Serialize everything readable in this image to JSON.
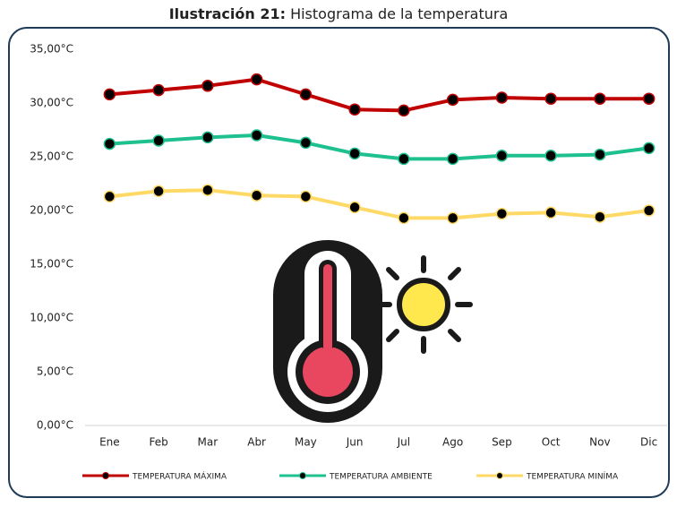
{
  "chart_data": {
    "type": "line",
    "caption_label": "Ilustración 21:",
    "title": "Histograma de la temperatura",
    "categories": [
      "Ene",
      "Feb",
      "Mar",
      "Abr",
      "May",
      "Jun",
      "Jul",
      "Ago",
      "Sep",
      "Oct",
      "Nov",
      "Dic"
    ],
    "series": [
      {
        "name": "TEMPERATURA MÁXIMA",
        "color": "#c00000",
        "values": [
          30.8,
          31.2,
          31.6,
          32.2,
          30.8,
          29.4,
          29.3,
          30.3,
          30.5,
          30.4,
          30.4,
          30.4
        ]
      },
      {
        "name": "TEMPERATURA AMBIENTE",
        "color": "#1ec08f",
        "values": [
          26.2,
          26.5,
          26.8,
          27.0,
          26.3,
          25.3,
          24.8,
          24.8,
          25.1,
          25.1,
          25.2,
          25.8
        ]
      },
      {
        "name": "TEMPERATURA MINÍMA",
        "color": "#ffd966",
        "values": [
          21.3,
          21.8,
          21.9,
          21.4,
          21.3,
          20.3,
          19.3,
          19.3,
          19.7,
          19.8,
          19.4,
          20.0
        ]
      }
    ],
    "ylim": [
      0,
      35
    ],
    "yticks": [
      {
        "value": 0,
        "label": "0,00°C"
      },
      {
        "value": 5,
        "label": "5,00°C"
      },
      {
        "value": 10,
        "label": "10,00°C"
      },
      {
        "value": 15,
        "label": "15,00°C"
      },
      {
        "value": 20,
        "label": "20,00°C"
      },
      {
        "value": 25,
        "label": "25,00°C"
      },
      {
        "value": 30,
        "label": "30,00°C"
      },
      {
        "value": 35,
        "label": "35,00°C"
      }
    ],
    "grid": false,
    "legend": "bottom"
  }
}
